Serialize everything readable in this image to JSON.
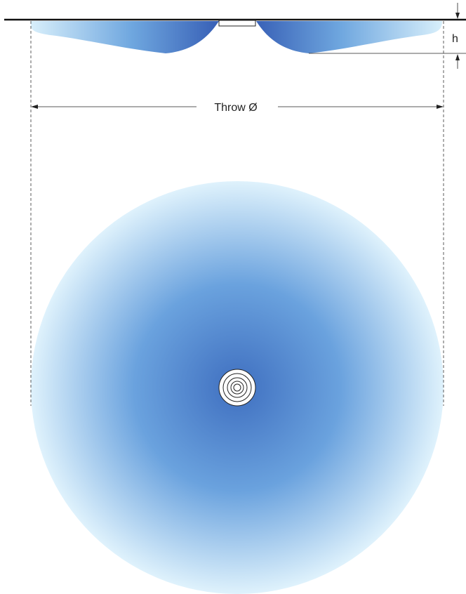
{
  "labels": {
    "height": "h",
    "throw": "Throw Ø"
  },
  "colors": {
    "ceiling_line": "#111111",
    "dimension_line": "#222222",
    "plume_dark": "#3f6fc0",
    "plume_mid": "#6aa2de",
    "plume_light": "#d8effb",
    "background": "#ffffff"
  },
  "icons": {
    "diffuser_top_view": "concentric-rings-icon",
    "arrow": "arrowhead-icon"
  }
}
